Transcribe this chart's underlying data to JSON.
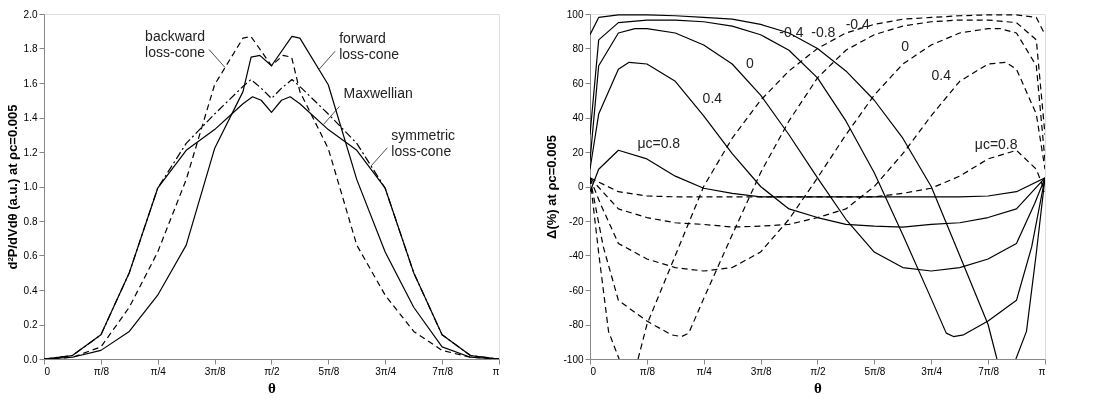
{
  "chart_data": [
    {
      "type": "line",
      "xlabel": "θ",
      "ylabel": "d²P/dVdθ (a.u.) at ρc=0.005",
      "xlim": [
        0,
        3.142
      ],
      "ylim": [
        0,
        2
      ],
      "xticks": [
        0,
        {
          "value": 0.3927,
          "label": "π/8"
        },
        {
          "value": 0.7854,
          "label": "π/4"
        },
        {
          "value": 1.1781,
          "label": "3π/8"
        },
        {
          "value": 1.5708,
          "label": "π/2"
        },
        {
          "value": 1.9635,
          "label": "5π/8"
        },
        {
          "value": 2.3562,
          "label": "3π/4"
        },
        {
          "value": 2.7489,
          "label": "7π/8"
        },
        {
          "value": 3.1416,
          "label": "π"
        }
      ],
      "yticks": [
        {
          "value": 0,
          "label": "0.0"
        },
        0.2,
        0.4,
        0.6,
        0.8,
        {
          "value": 1,
          "label": "1.0"
        },
        1.2,
        1.4,
        1.6,
        1.8,
        {
          "value": 2,
          "label": "2.0"
        }
      ],
      "series": [
        {
          "color": "#000000",
          "line_style": "dashed",
          "x": [
            0,
            0.196,
            0.393,
            0.589,
            0.785,
            0.982,
            1.178,
            1.374,
            1.429,
            1.571,
            1.65,
            1.71,
            1.767,
            1.963,
            2.16,
            2.356,
            2.553,
            2.749,
            2.945,
            3.142
          ],
          "values": [
            0,
            0.01,
            0.07,
            0.3,
            0.62,
            1.04,
            1.59,
            1.86,
            1.87,
            1.7,
            1.76,
            1.75,
            1.55,
            1.22,
            0.66,
            0.37,
            0.16,
            0.05,
            0.01,
            0
          ]
        },
        {
          "color": "#000000",
          "line_style": "solid",
          "x": [
            0,
            0.196,
            0.393,
            0.589,
            0.785,
            0.982,
            1.178,
            1.374,
            1.43,
            1.49,
            1.571,
            1.712,
            1.767,
            1.963,
            2.16,
            2.356,
            2.553,
            2.749,
            2.945,
            3.142
          ],
          "values": [
            0,
            0.01,
            0.05,
            0.16,
            0.37,
            0.66,
            1.22,
            1.55,
            1.75,
            1.76,
            1.7,
            1.87,
            1.86,
            1.59,
            1.04,
            0.62,
            0.3,
            0.07,
            0.01,
            0
          ]
        },
        {
          "color": "#000000",
          "line_style": "solid",
          "x": [
            0,
            0.196,
            0.393,
            0.589,
            0.785,
            0.982,
            1.178,
            1.374,
            1.44,
            1.5,
            1.571,
            1.64,
            1.7,
            1.767,
            1.963,
            2.16,
            2.356,
            2.553,
            2.749,
            2.945,
            3.142
          ],
          "values": [
            0,
            0.02,
            0.14,
            0.5,
            0.99,
            1.21,
            1.33,
            1.48,
            1.52,
            1.5,
            1.43,
            1.5,
            1.52,
            1.48,
            1.33,
            1.21,
            0.99,
            0.5,
            0.14,
            0.02,
            0
          ]
        },
        {
          "color": "#000000",
          "line_style": "dashdot",
          "x": [
            0,
            0.196,
            0.393,
            0.589,
            0.785,
            0.982,
            1.178,
            1.374,
            1.429,
            1.5,
            1.571,
            1.64,
            1.712,
            1.767,
            1.963,
            2.16,
            2.356,
            2.553,
            2.749,
            2.945,
            3.142
          ],
          "values": [
            0,
            0.02,
            0.14,
            0.5,
            0.99,
            1.25,
            1.42,
            1.58,
            1.62,
            1.57,
            1.51,
            1.57,
            1.62,
            1.58,
            1.42,
            1.25,
            0.99,
            0.5,
            0.14,
            0.02,
            0
          ]
        }
      ],
      "annotations": [
        {
          "text": "backward loss-cone",
          "x": 1.25,
          "y": 1.69
        },
        {
          "text": "forward loss-cone",
          "x": 1.9,
          "y": 1.68
        },
        {
          "text": "Maxwellian",
          "x": 1.93,
          "y": 1.36
        },
        {
          "text": "symmetric loss-cone",
          "x": 2.26,
          "y": 1.12
        }
      ]
    },
    {
      "type": "line",
      "xlabel": "θ",
      "ylabel": "Δ(%) at ρc=0.005",
      "xlim": [
        0,
        3.142
      ],
      "ylim": [
        -100,
        100
      ],
      "xticks": [
        0,
        {
          "value": 0.3927,
          "label": "π/8"
        },
        {
          "value": 0.7854,
          "label": "π/4"
        },
        {
          "value": 1.1781,
          "label": "3π/8"
        },
        {
          "value": 1.5708,
          "label": "π/2"
        },
        {
          "value": 1.9635,
          "label": "5π/8"
        },
        {
          "value": 2.3562,
          "label": "3π/4"
        },
        {
          "value": 2.7489,
          "label": "7π/8"
        },
        {
          "value": 3.1416,
          "label": "π"
        }
      ],
      "yticks": [
        -100,
        -80,
        -60,
        -40,
        -20,
        0,
        20,
        40,
        60,
        80,
        100
      ],
      "series": [
        {
          "color": "#000000",
          "line_style": "solid",
          "x": [
            0,
            0.06,
            0.196,
            0.393,
            0.589,
            0.785,
            0.982,
            1.178,
            1.374,
            1.571,
            1.767,
            1.963,
            2.16,
            2.356,
            2.553,
            2.749,
            2.945,
            3.142
          ],
          "values": [
            -3,
            10,
            21,
            16,
            6,
            -1,
            -4,
            -6,
            -6,
            -6,
            -6,
            -6,
            -6,
            -6,
            -6,
            -5.5,
            -3,
            5
          ]
        },
        {
          "color": "#000000",
          "line_style": "solid",
          "x": [
            0,
            0.06,
            0.196,
            0.27,
            0.393,
            0.589,
            0.785,
            0.982,
            1.178,
            1.374,
            1.571,
            1.767,
            1.963,
            2.16,
            2.356,
            2.553,
            2.749,
            2.945,
            3.142
          ],
          "values": [
            10,
            42,
            68,
            72,
            71,
            61,
            41,
            19,
            0,
            -13,
            -18,
            -22,
            -23,
            -23.5,
            -22,
            -21,
            -18,
            -13,
            5
          ]
        },
        {
          "color": "#000000",
          "line_style": "solid",
          "x": [
            0,
            0.06,
            0.196,
            0.31,
            0.393,
            0.589,
            0.785,
            0.982,
            1.178,
            1.374,
            1.571,
            1.767,
            1.963,
            2.16,
            2.356,
            2.553,
            2.749,
            2.945,
            3.07,
            3.142
          ],
          "values": [
            15,
            70,
            89,
            91.5,
            91.5,
            89,
            82,
            71,
            53,
            30,
            5,
            -19,
            -38,
            -47,
            -49,
            -47,
            -42,
            -33,
            -10,
            5
          ]
        },
        {
          "color": "#000000",
          "line_style": "solid",
          "x": [
            0,
            0.06,
            0.196,
            0.393,
            0.589,
            0.785,
            0.982,
            1.178,
            1.374,
            1.571,
            1.767,
            1.963,
            2.16,
            2.356,
            2.46,
            2.51,
            2.58,
            2.749,
            2.945,
            3.05,
            3.142
          ],
          "values": [
            30,
            85,
            95,
            96.5,
            96.5,
            95.5,
            93,
            88,
            79,
            63,
            38,
            8,
            -28,
            -65,
            -85,
            -87,
            -86,
            -78,
            -66,
            -35,
            5
          ]
        },
        {
          "color": "#000000",
          "line_style": "solid",
          "x": [
            0,
            0.06,
            0.196,
            0.393,
            0.589,
            0.785,
            0.982,
            1.178,
            1.374,
            1.571,
            1.767,
            1.963,
            2.16,
            2.356,
            2.553,
            2.749,
            2.81,
            2.86,
            2.941,
            3.014,
            3.08,
            3.142
          ],
          "values": [
            88,
            98,
            99.5,
            99.5,
            99,
            98,
            97,
            94,
            89,
            80,
            67,
            50,
            28,
            0,
            -40,
            -80,
            -100,
            null,
            -100,
            -84,
            -40,
            5
          ]
        },
        {
          "color": "#000000",
          "line_style": "dashed",
          "x": [
            0,
            0.196,
            0.393,
            0.589,
            0.785,
            0.982,
            1.178,
            1.374,
            1.571,
            1.767,
            1.963,
            2.16,
            2.356,
            2.553,
            2.749,
            2.945,
            3.082,
            3.142
          ],
          "values": [
            5,
            -3,
            -5.5,
            -6,
            -6,
            -6,
            -6,
            -6,
            -6,
            -6,
            -6,
            -4,
            -1,
            6,
            16,
            21,
            10,
            -3
          ]
        },
        {
          "color": "#000000",
          "line_style": "dashed",
          "x": [
            0,
            0.196,
            0.393,
            0.589,
            0.785,
            0.982,
            1.178,
            1.374,
            1.571,
            1.767,
            1.963,
            2.16,
            2.356,
            2.553,
            2.749,
            2.872,
            2.945,
            3.082,
            3.142
          ],
          "values": [
            5,
            -13,
            -18,
            -21,
            -22,
            -23.5,
            -23,
            -22,
            -18,
            -13,
            0,
            19,
            41,
            61,
            71,
            72,
            68,
            42,
            10
          ]
        },
        {
          "color": "#000000",
          "line_style": "dashed",
          "x": [
            0,
            0.072,
            0.196,
            0.393,
            0.589,
            0.785,
            0.982,
            1.178,
            1.374,
            1.571,
            1.767,
            1.963,
            2.16,
            2.356,
            2.553,
            2.749,
            2.832,
            2.945,
            3.082,
            3.142
          ],
          "values": [
            5,
            -10,
            -33,
            -42,
            -47,
            -49,
            -47,
            -38,
            -19,
            5,
            30,
            53,
            71,
            82,
            89,
            91.5,
            91.5,
            89,
            70,
            15
          ]
        },
        {
          "color": "#000000",
          "line_style": "dashed",
          "x": [
            0,
            0.092,
            0.196,
            0.393,
            0.562,
            0.632,
            0.682,
            0.785,
            0.982,
            1.178,
            1.374,
            1.571,
            1.767,
            1.963,
            2.16,
            2.356,
            2.553,
            2.749,
            2.945,
            3.082,
            3.142
          ],
          "values": [
            5,
            -35,
            -66,
            -78,
            -86,
            -87,
            -85,
            -65,
            -28,
            8,
            38,
            63,
            79,
            88,
            93,
            95.5,
            96.5,
            96.5,
            95,
            85,
            30
          ]
        },
        {
          "color": "#000000",
          "line_style": "dashed",
          "x": [
            0,
            0.062,
            0.128,
            0.201,
            0.282,
            0.332,
            0.393,
            0.589,
            0.785,
            0.982,
            1.178,
            1.374,
            1.571,
            1.767,
            1.963,
            2.16,
            2.356,
            2.553,
            2.749,
            2.945,
            3.082,
            3.142
          ],
          "values": [
            5,
            -40,
            -84,
            -100,
            null,
            -100,
            -80,
            -40,
            0,
            28,
            50,
            67,
            80,
            89,
            94,
            97,
            98,
            99,
            99.5,
            99.5,
            98,
            88
          ]
        }
      ],
      "annotations": [
        {
          "text": "μc=0.8",
          "x": 0.3,
          "y": 19
        },
        {
          "text": "0.4",
          "x": 0.75,
          "y": 45
        },
        {
          "text": "0",
          "x": 1.05,
          "y": 65
        },
        {
          "text": "-0.4",
          "x": 1.28,
          "y": 83
        },
        {
          "text": "-0.8",
          "x": 1.5,
          "y": 83
        },
        {
          "text": "-0.4",
          "x": 1.96,
          "y": 88
        },
        {
          "text": "0",
          "x": 2.23,
          "y": 75
        },
        {
          "text": "0.4",
          "x": 2.52,
          "y": 58
        },
        {
          "text": "μc=0.8",
          "x": 2.98,
          "y": 18
        }
      ]
    }
  ]
}
